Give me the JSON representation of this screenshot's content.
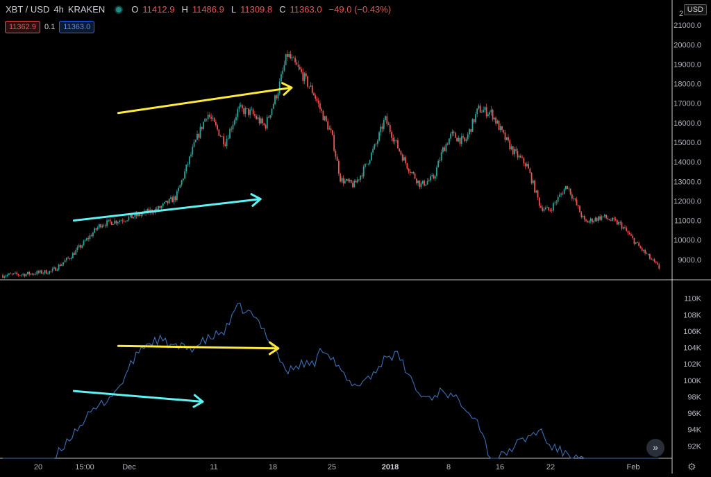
{
  "header": {
    "symbol": "XBT / USD",
    "interval": "4h",
    "exchange": "KRAKEN",
    "open_label": "O",
    "open": "11412.9",
    "high_label": "H",
    "high": "11486.9",
    "low_label": "L",
    "low": "11309.8",
    "close_label": "C",
    "close": "11363.0",
    "change": "−49.0 (−0.43%)"
  },
  "quote": {
    "bid": "11362.9",
    "spread": "0.1",
    "ask": "11363.0"
  },
  "currency_label": "USD",
  "colors": {
    "up": "#26a69a",
    "down": "#ef5350",
    "volume_line": "#3d6fb6",
    "axis_text": "#b2b5be",
    "annotation_yellow": "#ffeb3b",
    "annotation_cyan": "#5ff2f2"
  },
  "chart_data": [
    {
      "type": "candlestick",
      "pane": "price",
      "y_axis": {
        "min": 8000,
        "max": 22000,
        "ticks": [
          "21000.0",
          "20000.0",
          "19000.0",
          "18000.0",
          "17000.0",
          "16000.0",
          "15000.0",
          "14000.0",
          "13000.0",
          "12000.0",
          "11000.0",
          "10000.0",
          "9000.0"
        ]
      },
      "x_ticks": [
        "20",
        "15:00",
        "Dec",
        "11",
        "18",
        "25",
        "2018",
        "8",
        "16",
        "22",
        "Feb"
      ],
      "x": [
        0,
        5,
        11,
        15,
        18,
        22,
        26,
        31,
        35,
        39,
        43,
        46,
        50,
        53,
        56,
        59,
        62,
        64,
        67,
        70,
        72,
        74,
        76,
        79,
        81,
        84,
        86,
        89,
        91,
        94,
        97,
        99,
        101,
        104,
        107,
        110,
        113,
        115,
        118,
        121,
        123,
        127,
        131,
        135,
        139,
        143,
        148
      ],
      "close": [
        8200,
        8250,
        8400,
        9100,
        9800,
        10800,
        11000,
        11300,
        11600,
        12200,
        14800,
        16500,
        15000,
        16700,
        16500,
        15800,
        17700,
        19500,
        18600,
        17500,
        16400,
        15400,
        13100,
        12800,
        13500,
        14900,
        16200,
        14700,
        13800,
        12800,
        13200,
        14600,
        15400,
        15000,
        16700,
        16500,
        15200,
        14500,
        13800,
        11700,
        11500,
        12800,
        10900,
        11200,
        10800,
        9700,
        8500
      ],
      "annotations": [
        {
          "color": "yellow",
          "from": [
            26,
            16500
          ],
          "to": [
            65,
            17800
          ]
        },
        {
          "color": "cyan",
          "from": [
            16,
            11000
          ],
          "to": [
            58,
            12100
          ]
        }
      ]
    },
    {
      "type": "line",
      "pane": "indicator",
      "series": [
        {
          "values_k": [
            86,
            87,
            90,
            93,
            95,
            97,
            99,
            104,
            105,
            104,
            104,
            105,
            106,
            109,
            108,
            106,
            103,
            101,
            102,
            102,
            104,
            103,
            101,
            99,
            100,
            101,
            103,
            103,
            101,
            98,
            98,
            99,
            98,
            97,
            95,
            90,
            91,
            92,
            93,
            94,
            92,
            91,
            90,
            89,
            89,
            90,
            89
          ]
        }
      ],
      "x": [
        0,
        5,
        11,
        15,
        18,
        22,
        26,
        31,
        35,
        39,
        43,
        46,
        50,
        53,
        56,
        59,
        62,
        64,
        67,
        70,
        72,
        74,
        76,
        79,
        81,
        84,
        86,
        89,
        91,
        94,
        97,
        99,
        101,
        104,
        107,
        110,
        113,
        115,
        118,
        121,
        123,
        127,
        131,
        135,
        139,
        143,
        148
      ],
      "y_axis": {
        "min": 90.5,
        "max": 111.5,
        "ticks": [
          "110K",
          "108K",
          "106K",
          "104K",
          "102K",
          "100K",
          "98K",
          "96K",
          "94K",
          "92K"
        ]
      },
      "annotations": [
        {
          "color": "yellow",
          "from": [
            26,
            104.2
          ],
          "to": [
            62,
            103.9
          ]
        },
        {
          "color": "cyan",
          "from": [
            16,
            98.7
          ],
          "to": [
            45,
            97.4
          ]
        }
      ]
    }
  ],
  "top_axis_label": "2"
}
